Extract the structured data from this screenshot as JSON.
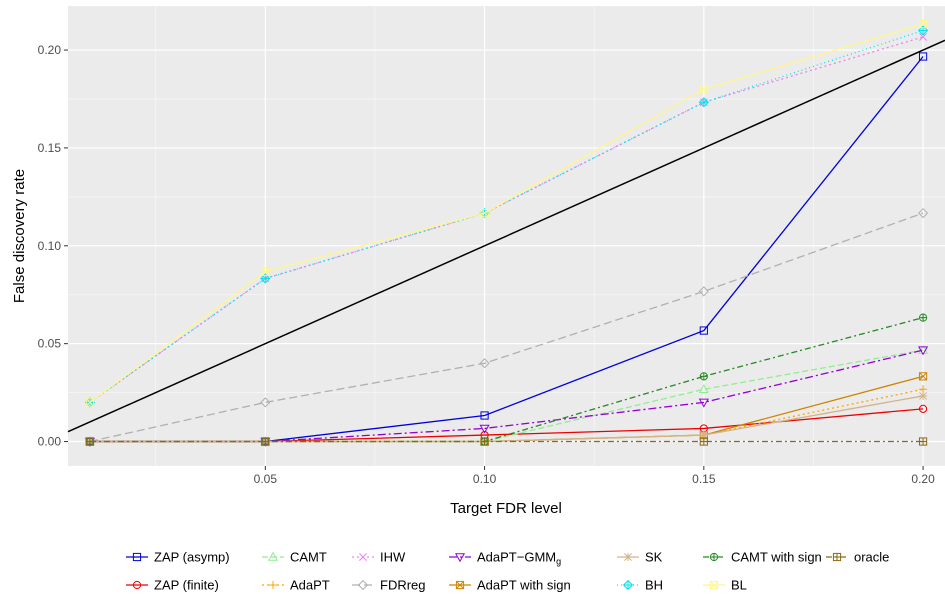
{
  "chart_data": {
    "type": "line",
    "xlabel": "Target FDR level",
    "ylabel": "False discovery rate",
    "xlim": [
      0.005,
      0.205
    ],
    "ylim": [
      -0.0125,
      0.2225
    ],
    "x_ticks": [
      0.05,
      0.1,
      0.15,
      0.2
    ],
    "x_tick_labels": [
      "0.05",
      "0.10",
      "0.15",
      "0.20"
    ],
    "y_ticks": [
      0.0,
      0.05,
      0.1,
      0.15,
      0.2
    ],
    "y_tick_labels": [
      "0.00",
      "0.05",
      "0.10",
      "0.15",
      "0.20"
    ],
    "x": [
      0.01,
      0.05,
      0.1,
      0.15,
      0.2
    ],
    "grid": true,
    "legend_position": "bottom",
    "reference_line": {
      "slope": 1,
      "intercept": 0,
      "color": "#000000"
    },
    "series": [
      {
        "name": "ZAP (asymp)",
        "values": [
          0.0,
          0.0,
          0.0133,
          0.0567,
          0.1967
        ],
        "color": "#0000dd",
        "dash": "",
        "marker": "square"
      },
      {
        "name": "ZAP (finite)",
        "values": [
          0.0,
          0.0,
          0.0033,
          0.0067,
          0.0167
        ],
        "color": "#ee0000",
        "dash": "",
        "marker": "circle"
      },
      {
        "name": "CAMT",
        "values": [
          0.0,
          0.0,
          0.0,
          0.0267,
          0.0467
        ],
        "color": "#90ee90",
        "dash": "6,3",
        "marker": "triangle"
      },
      {
        "name": "AdaPT",
        "values": [
          0.0,
          0.0,
          0.0,
          0.0033,
          0.0267
        ],
        "color": "#ffa500",
        "dash": "2,3",
        "marker": "plus"
      },
      {
        "name": "IHW",
        "values": [
          0.02,
          0.0833,
          0.1167,
          0.1733,
          0.2067
        ],
        "color": "#ee82ee",
        "dash": "2,3",
        "marker": "cross"
      },
      {
        "name": "FDRreg",
        "values": [
          0.0,
          0.02,
          0.04,
          0.0767,
          0.1167
        ],
        "color": "#b0b0b0",
        "dash": "8,4",
        "marker": "diamond"
      },
      {
        "name": "AdaPT−GMM",
        "name_sub": "g",
        "values": [
          0.0,
          0.0,
          0.0067,
          0.02,
          0.0467
        ],
        "color": "#9400d3",
        "dash": "8,3,2,3",
        "marker": "triangle-down"
      },
      {
        "name": "AdaPT with sign",
        "values": [
          0.0,
          0.0,
          0.0,
          0.0033,
          0.0333
        ],
        "color": "#cd8500",
        "dash": "",
        "marker": "square-cross"
      },
      {
        "name": "SK",
        "values": [
          0.0,
          0.0,
          0.0,
          0.0033,
          0.0233
        ],
        "color": "#d2b48c",
        "dash": "",
        "marker": "asterisk"
      },
      {
        "name": "BH",
        "values": [
          0.02,
          0.0833,
          0.1167,
          0.1733,
          0.21
        ],
        "color": "#00e5ee",
        "dash": "1,3",
        "marker": "diamond-plus"
      },
      {
        "name": "CAMT with sign",
        "values": [
          0.0,
          0.0,
          0.0,
          0.0333,
          0.0633
        ],
        "color": "#228b22",
        "dash": "6,3,2,3",
        "marker": "circle-plus"
      },
      {
        "name": "BL",
        "values": [
          0.02,
          0.0867,
          0.1167,
          0.18,
          0.2133
        ],
        "color": "#fff68f",
        "dash": "",
        "marker": "square-x"
      },
      {
        "name": "oracle",
        "values": [
          0.0,
          0.0,
          0.0,
          0.0,
          0.0
        ],
        "color": "#8b6914",
        "dash": "6,3,2,3",
        "marker": "square-plus"
      }
    ]
  }
}
